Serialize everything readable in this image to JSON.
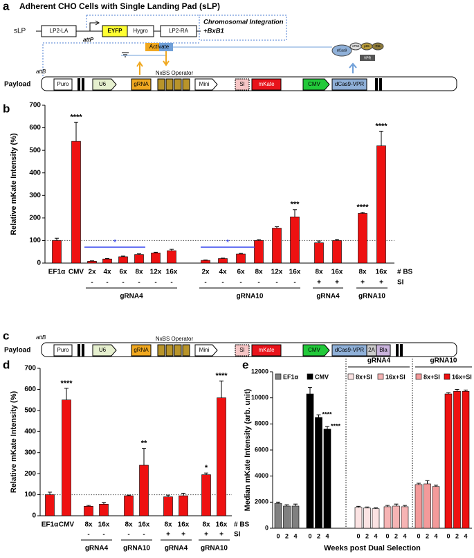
{
  "figure": {
    "panel_labels": [
      "a",
      "b",
      "c",
      "d",
      "e"
    ]
  },
  "diagram_a": {
    "title": "Adherent CHO Cells with Single Landing Pad (sLP)",
    "slp": "sLP",
    "lp2_la": "LP2-LA",
    "attp": "attP",
    "eyfp": "EYFP",
    "hygro": "Hygro",
    "lp2_ra": "LP2-RA",
    "integration": "Chromosomal Integration",
    "bxb1": "+BxB1",
    "payload": "Payload",
    "attb": "attB",
    "puro": "Puro",
    "u6": "U6",
    "grna": "gRNA",
    "operator": "NxBS Operator",
    "activate": "Activate",
    "mini": "Mini",
    "si": "SI",
    "mkate": "mKate",
    "cmv": "CMV",
    "dcas9_vpr": "dCas9-VPR",
    "icon": [
      "dCas9",
      "VP64",
      "p65",
      "Rta",
      "VPR"
    ]
  },
  "diagram_c": {
    "payload": "Payload",
    "attb": "attB",
    "puro": "Puro",
    "u6": "U6",
    "grna": "gRNA",
    "operator": "NxBS Operator",
    "mini": "Mini",
    "si": "SI",
    "mkate": "mKate",
    "cmv": "CMV",
    "dcas9_vpr": "dCas9-VPR",
    "t2a": "2A",
    "bla": "Bla"
  },
  "chart_data": [
    {
      "type": "bar",
      "ylabel": "Relative mKate Intensity (%)",
      "categories": [
        "EF1α",
        "CMV",
        "2x",
        "4x",
        "6x",
        "8x",
        "12x",
        "16x",
        "2x",
        "4x",
        "6x",
        "8x",
        "12x",
        "16x",
        "8x",
        "16x",
        "8x",
        "16x"
      ],
      "si": [
        null,
        null,
        "-",
        "-",
        "-",
        "-",
        "-",
        "-",
        "-",
        "-",
        "-",
        "-",
        "-",
        "-",
        "+",
        "+",
        "+",
        "+"
      ],
      "row_labels": [
        "# BS",
        "SI"
      ],
      "groups": [
        "gRNA4",
        "gRNA10",
        "gRNA4",
        "gRNA10"
      ],
      "values": [
        100,
        540,
        8,
        18,
        28,
        38,
        45,
        55,
        12,
        20,
        40,
        100,
        155,
        205,
        90,
        100,
        220,
        520
      ],
      "errors": [
        10,
        85,
        2,
        2,
        3,
        3,
        3,
        6,
        2,
        2,
        3,
        4,
        6,
        32,
        8,
        5,
        5,
        65
      ],
      "significance": [
        null,
        "****",
        null,
        null,
        null,
        null,
        null,
        null,
        null,
        null,
        null,
        null,
        null,
        "***",
        null,
        null,
        "****",
        "****"
      ],
      "annotations": [
        "*",
        "*"
      ],
      "color": "#ee1111",
      "ylim": [
        0,
        700
      ],
      "yticks": [
        0,
        100,
        200,
        300,
        400,
        500,
        600,
        700
      ],
      "reference_line": 100
    },
    {
      "type": "bar",
      "ylabel": "Relative mKate Intensity (%)",
      "categories": [
        "EF1α",
        "CMV",
        "8x",
        "16x",
        "8x",
        "16x",
        "8x",
        "16x",
        "8x",
        "16x"
      ],
      "si": [
        null,
        null,
        "-",
        "-",
        "-",
        "-",
        "+",
        "+",
        "+",
        "+"
      ],
      "row_labels": [
        "# BS",
        "SI"
      ],
      "groups": [
        "gRNA4",
        "gRNA10",
        "gRNA4",
        "gRNA10"
      ],
      "values": [
        100,
        550,
        45,
        55,
        95,
        240,
        90,
        95,
        195,
        560
      ],
      "errors": [
        12,
        55,
        4,
        8,
        3,
        80,
        8,
        12,
        8,
        80
      ],
      "significance": [
        null,
        "****",
        null,
        null,
        null,
        "**",
        null,
        null,
        "*",
        "****"
      ],
      "color": "#ee1111",
      "ylim": [
        0,
        700
      ],
      "yticks": [
        0,
        100,
        200,
        300,
        400,
        500,
        600,
        700
      ],
      "reference_line": 100
    },
    {
      "type": "grouped_bar",
      "ylabel": "Median mKate Intensity (arb. unit)",
      "xlabel": "Weeks post Dual Selection",
      "x": [
        0,
        2,
        4
      ],
      "group_headers": [
        "gRNA4",
        "gRNA10"
      ],
      "series": [
        {
          "name": "EF1α",
          "color": "#808080",
          "values": [
            1900,
            1700,
            1700
          ],
          "errors": [
            100,
            100,
            150
          ]
        },
        {
          "name": "CMV",
          "color": "#000000",
          "values": [
            10300,
            8500,
            7600
          ],
          "errors": [
            500,
            200,
            200
          ],
          "significance": [
            null,
            "****",
            "****"
          ]
        },
        {
          "name": "8x+SI",
          "color": "#fbe3e3",
          "values": [
            1600,
            1550,
            1500
          ],
          "errors": [
            80,
            80,
            60
          ]
        },
        {
          "name": "16x+SI",
          "color": "#f6b4b4",
          "values": [
            1650,
            1700,
            1650
          ],
          "errors": [
            100,
            150,
            100
          ]
        },
        {
          "name": "8x+SI",
          "color": "#f39a9a",
          "values": [
            3350,
            3400,
            3200
          ],
          "errors": [
            100,
            250,
            100
          ]
        },
        {
          "name": "16x+SI",
          "color": "#ee1111",
          "values": [
            10300,
            10500,
            10500
          ],
          "errors": [
            100,
            150,
            100
          ]
        }
      ],
      "ylim": [
        0,
        12000
      ],
      "yticks": [
        0,
        2000,
        4000,
        6000,
        8000,
        10000,
        12000
      ]
    }
  ]
}
